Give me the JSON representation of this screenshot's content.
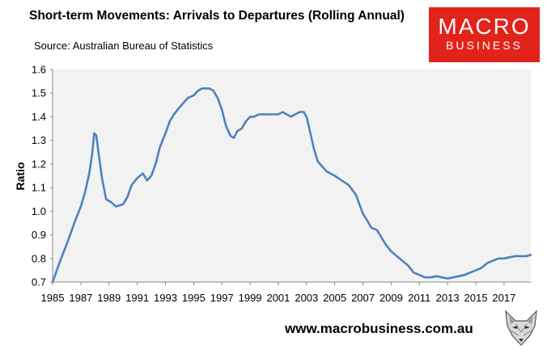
{
  "header": {
    "title": "Short-term Movements: Arrivals to Departures (Rolling Annual)",
    "subtitle": "Source: Australian Bureau of Statistics"
  },
  "logo": {
    "line1": "MACRO",
    "line2": "BUSINESS"
  },
  "footer": {
    "url": "www.macrobusiness.com.au"
  },
  "colors": {
    "line": "#4f81bd",
    "plot_bg": "#f2f2f2",
    "logo_bg": "#e2231a"
  },
  "chart_data": {
    "type": "line",
    "title": "Short-term Movements: Arrivals to Departures (Rolling Annual)",
    "ylabel": "Ratio",
    "xlabel": "",
    "xlim": [
      1985,
      2018.9
    ],
    "ylim": [
      0.7,
      1.6
    ],
    "x_ticks": [
      "1985",
      "1987",
      "1989",
      "1991",
      "1993",
      "1995",
      "1997",
      "1999",
      "2001",
      "2003",
      "2005",
      "2007",
      "2009",
      "2011",
      "2013",
      "2015",
      "2017"
    ],
    "y_ticks": [
      "0.7",
      "0.8",
      "0.9",
      "1.0",
      "1.1",
      "1.2",
      "1.3",
      "1.4",
      "1.5",
      "1.6"
    ],
    "grid": false,
    "legend": "none",
    "series": [
      {
        "x": [
          1985.0,
          1985.3,
          1985.6,
          1986.0,
          1986.3,
          1986.6,
          1987.0,
          1987.3,
          1987.6,
          1987.8,
          1987.95,
          1988.1,
          1988.25,
          1988.5,
          1988.8,
          1989.1,
          1989.5,
          1990.0,
          1990.3,
          1990.6,
          1991.0,
          1991.4,
          1991.7,
          1992.0,
          1992.3,
          1992.6,
          1993.0,
          1993.3,
          1993.6,
          1994.0,
          1994.3,
          1994.6,
          1995.0,
          1995.3,
          1995.6,
          1995.9,
          1996.1,
          1996.4,
          1996.7,
          1997.0,
          1997.3,
          1997.6,
          1997.85,
          1998.1,
          1998.4,
          1998.7,
          1999.0,
          1999.3,
          1999.6,
          2000.0,
          2000.3,
          2000.6,
          2001.0,
          2001.3,
          2001.6,
          2001.9,
          2002.2,
          2002.5,
          2002.8,
          2003.0,
          2003.2,
          2003.5,
          2003.8,
          2004.1,
          2004.4,
          2004.7,
          2005.0,
          2005.5,
          2006.0,
          2006.5,
          2007.0,
          2007.3,
          2007.6,
          2008.0,
          2008.3,
          2008.6,
          2009.0,
          2009.4,
          2009.8,
          2010.2,
          2010.6,
          2011.0,
          2011.4,
          2011.8,
          2012.2,
          2012.6,
          2013.0,
          2013.4,
          2013.8,
          2014.2,
          2014.6,
          2015.0,
          2015.4,
          2015.8,
          2016.2,
          2016.6,
          2017.0,
          2017.4,
          2017.8,
          2018.2,
          2018.6,
          2018.9
        ],
        "y": [
          0.7,
          0.75,
          0.8,
          0.86,
          0.91,
          0.96,
          1.02,
          1.08,
          1.16,
          1.24,
          1.33,
          1.32,
          1.25,
          1.14,
          1.05,
          1.04,
          1.02,
          1.03,
          1.06,
          1.11,
          1.14,
          1.16,
          1.13,
          1.15,
          1.2,
          1.27,
          1.33,
          1.38,
          1.41,
          1.44,
          1.46,
          1.48,
          1.49,
          1.51,
          1.52,
          1.52,
          1.52,
          1.51,
          1.48,
          1.43,
          1.36,
          1.32,
          1.31,
          1.34,
          1.35,
          1.38,
          1.4,
          1.4,
          1.41,
          1.41,
          1.41,
          1.41,
          1.41,
          1.42,
          1.41,
          1.4,
          1.41,
          1.42,
          1.42,
          1.4,
          1.35,
          1.27,
          1.21,
          1.19,
          1.17,
          1.16,
          1.15,
          1.13,
          1.11,
          1.07,
          0.99,
          0.96,
          0.93,
          0.92,
          0.89,
          0.86,
          0.83,
          0.81,
          0.79,
          0.77,
          0.74,
          0.73,
          0.72,
          0.72,
          0.725,
          0.72,
          0.715,
          0.72,
          0.725,
          0.73,
          0.74,
          0.75,
          0.76,
          0.78,
          0.79,
          0.8,
          0.8,
          0.805,
          0.81,
          0.81,
          0.81,
          0.815
        ]
      }
    ]
  }
}
